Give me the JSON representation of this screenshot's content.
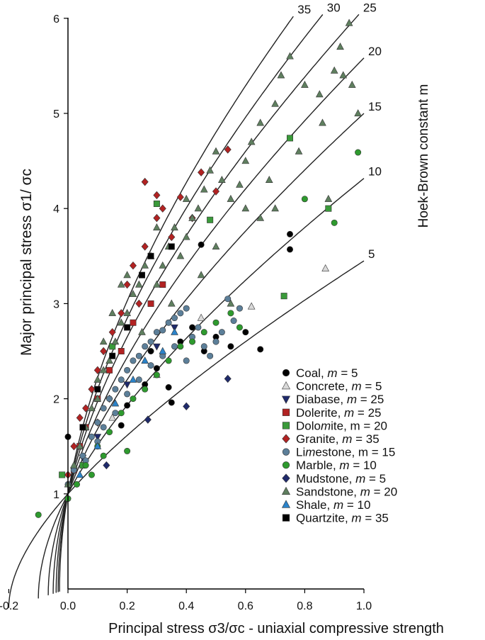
{
  "chart_data": {
    "type": "scatter",
    "xlabel": "Principal stress σ3/σc - uniaxial compressive strength",
    "ylabel": "Major principal stress σ1/ σc",
    "right_label": "Hoek-Brown constant m",
    "xlim": [
      -0.2,
      1.0
    ],
    "ylim": [
      0,
      6
    ],
    "x_ticks": [
      "-0.2",
      "0.0",
      "0.2",
      "0.4",
      "0.6",
      "0.8",
      "1.0"
    ],
    "y_ticks": [
      "1",
      "2",
      "3",
      "4",
      "5",
      "6"
    ],
    "grid": false,
    "legend_position": "bottom-right",
    "curves": [
      {
        "m": "5",
        "label": "5"
      },
      {
        "m": "10",
        "label": "10"
      },
      {
        "m": "15",
        "label": "15"
      },
      {
        "m": "20",
        "label": "20"
      },
      {
        "m": "25",
        "label": "25"
      },
      {
        "m": "30",
        "label": "30"
      },
      {
        "m": "35",
        "label": "35"
      }
    ],
    "series": [
      {
        "name": "Coal",
        "m": "5",
        "legend": "Coal, m =  5",
        "marker": "circle",
        "color": "#000000",
        "points": [
          [
            0.0,
            1.6
          ],
          [
            0.18,
            1.72
          ],
          [
            0.26,
            2.15
          ],
          [
            0.3,
            2.32
          ],
          [
            0.34,
            2.12
          ],
          [
            0.35,
            1.96
          ],
          [
            0.38,
            2.6
          ],
          [
            0.42,
            2.75
          ],
          [
            0.46,
            2.5
          ],
          [
            0.5,
            2.65
          ],
          [
            0.55,
            2.55
          ],
          [
            0.6,
            2.7
          ],
          [
            0.65,
            2.52
          ],
          [
            0.45,
            3.62
          ],
          [
            0.75,
            3.73
          ],
          [
            0.75,
            3.57
          ],
          [
            0.28,
            2.5
          ],
          [
            0.2,
            1.93
          ]
        ]
      },
      {
        "name": "Concrete",
        "m": "5",
        "legend": "Concrete, m = 5",
        "marker": "triangle",
        "color": "#d9d9d9",
        "points": [
          [
            0.87,
            3.37
          ],
          [
            0.62,
            2.97
          ],
          [
            0.45,
            2.85
          ],
          [
            0.3,
            2.25
          ],
          [
            0.15,
            1.8
          ]
        ]
      },
      {
        "name": "Diabase",
        "m": "25",
        "legend": "Diabase, m = 25",
        "marker": "tri-down",
        "color": "#1f2a6b",
        "points": [
          [
            0.05,
            1.38
          ],
          [
            0.1,
            1.6
          ],
          [
            0.2,
            2.15
          ],
          [
            0.3,
            2.55
          ],
          [
            0.36,
            2.75
          ]
        ]
      },
      {
        "name": "Dolerite",
        "m": "25",
        "legend": "Dolerite, m = 25",
        "marker": "square",
        "color": "#b22222",
        "points": [
          [
            0.02,
            1.25
          ],
          [
            0.04,
            1.5
          ],
          [
            0.06,
            1.7
          ],
          [
            0.1,
            2.0
          ],
          [
            0.14,
            2.3
          ],
          [
            0.18,
            2.5
          ],
          [
            0.22,
            2.8
          ],
          [
            0.28,
            3.0
          ],
          [
            0.32,
            3.2
          ]
        ]
      },
      {
        "name": "Dolomite",
        "m": "20",
        "legend": "Dolomite, m = 20",
        "marker": "square",
        "color": "#3a9a3a",
        "points": [
          [
            0.75,
            4.74
          ],
          [
            0.73,
            3.08
          ],
          [
            0.88,
            4.0
          ],
          [
            0.48,
            3.88
          ],
          [
            0.3,
            4.05
          ],
          [
            0.15,
            2.55
          ],
          [
            0.05,
            1.3
          ],
          [
            -0.02,
            1.2
          ]
        ]
      },
      {
        "name": "Granite",
        "m": "35",
        "legend": "Granite, m = 35",
        "marker": "diamond",
        "color": "#b22222",
        "points": [
          [
            0.0,
            1.2
          ],
          [
            0.02,
            1.5
          ],
          [
            0.04,
            1.8
          ],
          [
            0.06,
            1.9
          ],
          [
            0.08,
            2.1
          ],
          [
            0.1,
            2.3
          ],
          [
            0.12,
            2.5
          ],
          [
            0.15,
            2.7
          ],
          [
            0.18,
            2.9
          ],
          [
            0.2,
            3.2
          ],
          [
            0.22,
            3.4
          ],
          [
            0.26,
            3.6
          ],
          [
            0.3,
            3.9
          ],
          [
            0.32,
            4.0
          ],
          [
            0.26,
            4.28
          ],
          [
            0.3,
            4.14
          ],
          [
            0.38,
            4.12
          ],
          [
            0.42,
            3.9
          ],
          [
            0.45,
            4.38
          ],
          [
            0.54,
            4.62
          ],
          [
            0.5,
            4.18
          ],
          [
            0.14,
            2.0
          ],
          [
            0.1,
            1.75
          ],
          [
            0.24,
            3.0
          ],
          [
            0.35,
            3.7
          ]
        ]
      },
      {
        "name": "Limestone",
        "m": "15",
        "legend": "Limestone, m = 15",
        "marker": "circle",
        "color": "#5c7f99",
        "points": [
          [
            0.0,
            1.1
          ],
          [
            0.02,
            1.25
          ],
          [
            0.05,
            1.4
          ],
          [
            0.08,
            1.6
          ],
          [
            0.1,
            1.75
          ],
          [
            0.12,
            1.9
          ],
          [
            0.14,
            2.0
          ],
          [
            0.16,
            2.1
          ],
          [
            0.18,
            2.2
          ],
          [
            0.2,
            2.3
          ],
          [
            0.22,
            2.4
          ],
          [
            0.24,
            2.45
          ],
          [
            0.26,
            2.55
          ],
          [
            0.28,
            2.6
          ],
          [
            0.3,
            2.7
          ],
          [
            0.32,
            2.72
          ],
          [
            0.34,
            2.8
          ],
          [
            0.36,
            2.85
          ],
          [
            0.38,
            2.9
          ],
          [
            0.4,
            2.95
          ],
          [
            0.42,
            2.65
          ],
          [
            0.44,
            2.75
          ],
          [
            0.46,
            2.55
          ],
          [
            0.48,
            2.45
          ],
          [
            0.5,
            2.6
          ],
          [
            0.52,
            2.7
          ],
          [
            0.54,
            3.05
          ],
          [
            0.56,
            2.82
          ],
          [
            0.58,
            2.95
          ],
          [
            0.12,
            1.7
          ],
          [
            0.16,
            1.85
          ],
          [
            0.2,
            2.05
          ],
          [
            0.24,
            2.2
          ],
          [
            0.28,
            2.35
          ],
          [
            0.32,
            2.45
          ],
          [
            0.36,
            2.55
          ],
          [
            0.4,
            2.4
          ],
          [
            0.1,
            1.55
          ],
          [
            0.06,
            1.35
          ]
        ]
      },
      {
        "name": "Marble",
        "m": "10",
        "legend": "Marble, m = 10",
        "marker": "circle",
        "color": "#2e9a2e",
        "points": [
          [
            -0.1,
            0.78
          ],
          [
            0.0,
            0.95
          ],
          [
            0.03,
            1.1
          ],
          [
            0.06,
            1.3
          ],
          [
            0.1,
            1.5
          ],
          [
            0.14,
            1.65
          ],
          [
            0.18,
            1.85
          ],
          [
            0.22,
            2.0
          ],
          [
            0.26,
            2.1
          ],
          [
            0.3,
            2.25
          ],
          [
            0.34,
            2.4
          ],
          [
            0.38,
            2.55
          ],
          [
            0.42,
            2.6
          ],
          [
            0.46,
            2.7
          ],
          [
            0.5,
            2.8
          ],
          [
            0.55,
            2.9
          ],
          [
            0.58,
            2.75
          ],
          [
            0.98,
            4.59
          ],
          [
            0.8,
            4.1
          ],
          [
            0.9,
            3.85
          ],
          [
            0.2,
            1.45
          ],
          [
            0.12,
            1.4
          ],
          [
            0.08,
            1.2
          ]
        ]
      },
      {
        "name": "Mudstone",
        "m": "5",
        "legend": "Mudstone, m = 5",
        "marker": "diamond",
        "color": "#1f2a6b",
        "points": [
          [
            0.13,
            1.3
          ],
          [
            0.27,
            1.78
          ],
          [
            0.4,
            1.92
          ],
          [
            0.54,
            2.21
          ]
        ]
      },
      {
        "name": "Sandstone",
        "m": "20",
        "legend": "Sandstone, m = 20",
        "marker": "triangle",
        "color": "#5f7f5f",
        "points": [
          [
            0.0,
            1.1
          ],
          [
            0.02,
            1.3
          ],
          [
            0.04,
            1.5
          ],
          [
            0.06,
            1.7
          ],
          [
            0.08,
            1.9
          ],
          [
            0.1,
            2.0
          ],
          [
            0.12,
            2.3
          ],
          [
            0.14,
            2.4
          ],
          [
            0.16,
            2.6
          ],
          [
            0.18,
            2.8
          ],
          [
            0.2,
            2.9
          ],
          [
            0.22,
            3.1
          ],
          [
            0.24,
            3.2
          ],
          [
            0.26,
            3.4
          ],
          [
            0.28,
            3.5
          ],
          [
            0.3,
            3.2
          ],
          [
            0.32,
            3.4
          ],
          [
            0.34,
            3.6
          ],
          [
            0.36,
            3.8
          ],
          [
            0.38,
            3.5
          ],
          [
            0.4,
            3.7
          ],
          [
            0.42,
            3.9
          ],
          [
            0.44,
            4.0
          ],
          [
            0.46,
            4.2
          ],
          [
            0.48,
            4.4
          ],
          [
            0.5,
            4.6
          ],
          [
            0.52,
            4.3
          ],
          [
            0.55,
            4.1
          ],
          [
            0.58,
            4.25
          ],
          [
            0.6,
            4.5
          ],
          [
            0.62,
            4.7
          ],
          [
            0.65,
            4.9
          ],
          [
            0.7,
            5.1
          ],
          [
            0.72,
            5.4
          ],
          [
            0.75,
            5.6
          ],
          [
            0.8,
            5.3
          ],
          [
            0.85,
            5.2
          ],
          [
            0.9,
            5.45
          ],
          [
            0.93,
            5.4
          ],
          [
            0.95,
            5.95
          ],
          [
            0.96,
            5.3
          ],
          [
            0.98,
            5.0
          ],
          [
            0.88,
            4.1
          ],
          [
            0.7,
            4.0
          ],
          [
            0.65,
            3.9
          ],
          [
            0.55,
            3.0
          ],
          [
            0.5,
            3.6
          ],
          [
            0.45,
            3.3
          ],
          [
            0.35,
            3.0
          ],
          [
            0.25,
            2.7
          ],
          [
            0.18,
            3.2
          ],
          [
            0.15,
            2.9
          ],
          [
            0.1,
            2.2
          ],
          [
            0.6,
            4.0
          ],
          [
            0.68,
            4.3
          ],
          [
            0.78,
            4.6
          ],
          [
            0.86,
            4.9
          ],
          [
            0.4,
            4.1
          ],
          [
            0.3,
            3.8
          ],
          [
            0.2,
            3.3
          ],
          [
            0.12,
            2.6
          ],
          [
            0.92,
            5.7
          ]
        ]
      },
      {
        "name": "Shale",
        "m": "10",
        "legend": "Shale, m = 10",
        "marker": "triangle",
        "color": "#2b83c9",
        "points": [
          [
            0.04,
            1.2
          ],
          [
            0.1,
            1.5
          ],
          [
            0.16,
            1.95
          ],
          [
            0.22,
            2.2
          ],
          [
            0.26,
            2.4
          ],
          [
            0.32,
            2.5
          ],
          [
            0.36,
            2.7
          ]
        ]
      },
      {
        "name": "Quartzite",
        "m": "35",
        "legend": "Quartzite, m = 35",
        "marker": "square",
        "color": "#000000",
        "points": [
          [
            0.25,
            3.3
          ],
          [
            0.28,
            3.5
          ],
          [
            0.35,
            3.6
          ],
          [
            0.1,
            2.1
          ],
          [
            0.15,
            2.45
          ],
          [
            0.2,
            2.75
          ],
          [
            0.05,
            1.7
          ]
        ]
      }
    ]
  }
}
